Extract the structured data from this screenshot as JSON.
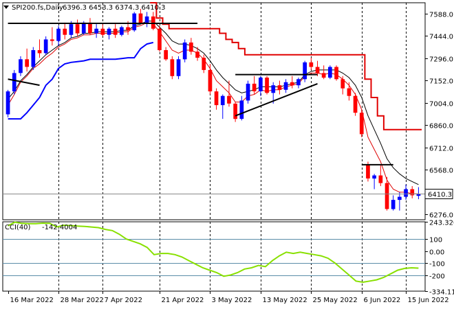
{
  "window": {
    "title": "SPI200.fs,Daily",
    "ohlc": "6396.3 6453.3 6374.3 6410.3",
    "colors": {
      "bull": "#0000ff",
      "bear": "#ff0000",
      "price_line": "#000000",
      "trend_red": "#e00000",
      "fast_red": "#d00000",
      "blue_band": "#0000ff",
      "cci_line": "#88e000",
      "price_tag_bg": "#ffffff"
    }
  },
  "chart_data": [
    {
      "type": "candlestick",
      "title": "SPI200.fs,Daily",
      "ylim": [
        6240,
        7660
      ],
      "y_ticks": [
        "7588.0",
        "7444.0",
        "7296.0",
        "7152.0",
        "7004.0",
        "6860.0",
        "6712.0",
        "6568.0",
        "6420.0",
        "6276.0"
      ],
      "current_price": "6410.3",
      "x_tick_labels": [
        "16 Mar 2022",
        "28 Mar 2022",
        "7 Apr 2022",
        "21 Apr 2022",
        "3 May 2022",
        "13 May 2022",
        "25 May 2022",
        "6 Jun 2022",
        "15 Jun 2022"
      ],
      "x_tick_index": [
        0,
        8,
        15,
        24,
        32,
        40,
        48,
        56,
        63
      ],
      "candles": [
        [
          6930,
          7090,
          6910,
          7080
        ],
        [
          7080,
          7220,
          7060,
          7200
        ],
        [
          7200,
          7310,
          7180,
          7290
        ],
        [
          7290,
          7360,
          7210,
          7240
        ],
        [
          7240,
          7370,
          7220,
          7350
        ],
        [
          7350,
          7420,
          7300,
          7330
        ],
        [
          7330,
          7440,
          7320,
          7420
        ],
        [
          7420,
          7500,
          7380,
          7410
        ],
        [
          7410,
          7510,
          7380,
          7490
        ],
        [
          7490,
          7530,
          7420,
          7450
        ],
        [
          7450,
          7540,
          7430,
          7520
        ],
        [
          7520,
          7550,
          7440,
          7460
        ],
        [
          7460,
          7540,
          7450,
          7530
        ],
        [
          7530,
          7560,
          7450,
          7460
        ],
        [
          7460,
          7520,
          7430,
          7490
        ],
        [
          7490,
          7520,
          7440,
          7450
        ],
        [
          7450,
          7500,
          7420,
          7490
        ],
        [
          7490,
          7520,
          7430,
          7450
        ],
        [
          7450,
          7510,
          7440,
          7500
        ],
        [
          7500,
          7540,
          7450,
          7480
        ],
        [
          7480,
          7600,
          7470,
          7590
        ],
        [
          7590,
          7620,
          7520,
          7530
        ],
        [
          7530,
          7600,
          7500,
          7570
        ],
        [
          7570,
          7600,
          7480,
          7490
        ],
        [
          7490,
          7510,
          7340,
          7350
        ],
        [
          7350,
          7370,
          7280,
          7290
        ],
        [
          7290,
          7310,
          7160,
          7180
        ],
        [
          7180,
          7310,
          7160,
          7290
        ],
        [
          7290,
          7420,
          7270,
          7400
        ],
        [
          7400,
          7430,
          7320,
          7340
        ],
        [
          7340,
          7370,
          7280,
          7300
        ],
        [
          7300,
          7320,
          7200,
          7220
        ],
        [
          7220,
          7260,
          7060,
          7080
        ],
        [
          7080,
          7100,
          6960,
          6990
        ],
        [
          6990,
          7060,
          6900,
          7050
        ],
        [
          7050,
          7150,
          6980,
          7000
        ],
        [
          7000,
          7010,
          6880,
          6900
        ],
        [
          6900,
          7050,
          6890,
          7020
        ],
        [
          7020,
          7150,
          7000,
          7130
        ],
        [
          7130,
          7180,
          7060,
          7080
        ],
        [
          7080,
          7180,
          7050,
          7170
        ],
        [
          7170,
          7180,
          7060,
          7070
        ],
        [
          7070,
          7140,
          7000,
          7120
        ],
        [
          7120,
          7150,
          7060,
          7090
        ],
        [
          7090,
          7160,
          7070,
          7140
        ],
        [
          7140,
          7180,
          7100,
          7120
        ],
        [
          7120,
          7170,
          7100,
          7160
        ],
        [
          7160,
          7280,
          7140,
          7270
        ],
        [
          7270,
          7300,
          7220,
          7240
        ],
        [
          7240,
          7280,
          7180,
          7200
        ],
        [
          7200,
          7250,
          7160,
          7170
        ],
        [
          7170,
          7250,
          7160,
          7240
        ],
        [
          7240,
          7250,
          7150,
          7160
        ],
        [
          7160,
          7180,
          7060,
          7100
        ],
        [
          7100,
          7140,
          7020,
          7050
        ],
        [
          7050,
          7070,
          6920,
          6940
        ],
        [
          6940,
          6960,
          6780,
          6800
        ],
        [
          6600,
          6620,
          6490,
          6510
        ],
        [
          6510,
          6540,
          6440,
          6530
        ],
        [
          6530,
          6600,
          6460,
          6480
        ],
        [
          6480,
          6520,
          6300,
          6310
        ],
        [
          6310,
          6400,
          6300,
          6370
        ],
        [
          6370,
          6420,
          6300,
          6390
        ],
        [
          6390,
          6470,
          6370,
          6440
        ],
        [
          6440,
          6460,
          6380,
          6400
        ],
        [
          6396.3,
          6453.3,
          6374.3,
          6410.3
        ]
      ],
      "indicators": {
        "fast_ma": [
          6990,
          7060,
          7140,
          7180,
          7230,
          7260,
          7300,
          7330,
          7370,
          7390,
          7420,
          7430,
          7450,
          7450,
          7460,
          7460,
          7460,
          7460,
          7470,
          7470,
          7500,
          7510,
          7530,
          7520,
          7470,
          7410,
          7350,
          7330,
          7350,
          7350,
          7330,
          7290,
          7230,
          7150,
          7110,
          7070,
          7010,
          7010,
          7050,
          7060,
          7090,
          7080,
          7090,
          7090,
          7110,
          7120,
          7130,
          7180,
          7200,
          7200,
          7190,
          7200,
          7190,
          7160,
          7120,
          7060,
          6960,
          6780,
          6700,
          6620,
          6500,
          6440,
          6420,
          6420,
          6410,
          6410
        ],
        "slow_ma": [
          7030,
          7080,
          7150,
          7190,
          7240,
          7280,
          7320,
          7350,
          7380,
          7400,
          7430,
          7440,
          7460,
          7460,
          7470,
          7470,
          7470,
          7470,
          7480,
          7480,
          7510,
          7520,
          7540,
          7540,
          7500,
          7460,
          7410,
          7390,
          7390,
          7380,
          7360,
          7330,
          7280,
          7220,
          7170,
          7130,
          7090,
          7070,
          7080,
          7090,
          7110,
          7110,
          7110,
          7110,
          7120,
          7130,
          7140,
          7190,
          7210,
          7220,
          7220,
          7220,
          7220,
          7200,
          7170,
          7120,
          7040,
          6920,
          6830,
          6740,
          6640,
          6580,
          6540,
          6510,
          6490,
          6470
        ],
        "blue_band": [
          6900,
          6900,
          6900,
          6940,
          6990,
          7040,
          7120,
          7160,
          7230,
          7260,
          7270,
          7275,
          7280,
          7290,
          7290,
          7290,
          7290,
          7290,
          7295,
          7300,
          7300,
          7360,
          7390,
          7400
        ],
        "red_band": [
          7660,
          7560,
          7520,
          7490,
          7490,
          7490,
          7490,
          7490,
          7490,
          7490,
          7490,
          7460,
          7420,
          7400,
          7360,
          7320,
          7320,
          7320,
          7320,
          7320,
          7320,
          7320,
          7320,
          7320,
          7320,
          7320,
          7320,
          7320,
          7320,
          7320,
          7320,
          7320,
          7320,
          7320,
          7160,
          7040,
          6920,
          6830,
          6830,
          6830,
          6830,
          6830,
          6830
        ],
        "red_band_start_index": 23,
        "fast_ma_color": "#dd0000",
        "slow_ma_color": "#000000"
      },
      "trendlines": [
        {
          "from": [
            0,
            7160
          ],
          "to": [
            5,
            7120
          ]
        },
        {
          "from": [
            0,
            7525
          ],
          "to": [
            30,
            7525
          ]
        },
        {
          "from": [
            36,
            6920
          ],
          "to": [
            49,
            7130
          ]
        },
        {
          "from": [
            36,
            7190
          ],
          "to": [
            49,
            7190
          ]
        },
        {
          "from": [
            56,
            6600
          ],
          "to": [
            61,
            6600
          ]
        }
      ]
    },
    {
      "type": "line",
      "title": "CCI(40)",
      "value_label": "-142.4004",
      "ylim": [
        -334.11,
        243.3203
      ],
      "y_ticks": [
        "243.3203",
        "100",
        "0.00",
        "-100",
        "-200",
        "-334.110"
      ],
      "levels": [
        100,
        -100,
        -200
      ],
      "values": [
        210,
        240,
        230,
        228,
        228,
        232,
        230,
        200,
        215,
        212,
        208,
        205,
        200,
        195,
        180,
        170,
        140,
        100,
        80,
        60,
        30,
        -30,
        -20,
        -20,
        -30,
        -50,
        -80,
        -110,
        -140,
        -160,
        -180,
        -210,
        -200,
        -180,
        -150,
        -140,
        -120,
        -130,
        -80,
        -40,
        -10,
        -20,
        -10,
        -20,
        -30,
        -40,
        -60,
        -100,
        -150,
        -200,
        -250,
        -260,
        -250,
        -240,
        -220,
        -190,
        -160,
        -145,
        -140,
        -142.4
      ]
    }
  ]
}
